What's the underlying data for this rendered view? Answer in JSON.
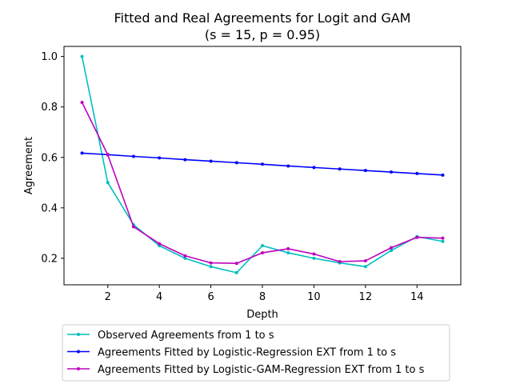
{
  "chart_data": {
    "type": "line",
    "title": "Fitted and Real Agreements for Logit and GAM",
    "subtitle": "(s = 15, p = 0.95)",
    "xlabel": "Depth",
    "ylabel": "Agreement",
    "xlim": [
      0.3,
      15.7
    ],
    "ylim": [
      0.095,
      1.04
    ],
    "xticks": [
      2,
      4,
      6,
      8,
      10,
      12,
      14
    ],
    "yticks": [
      0.2,
      0.4,
      0.6,
      0.8,
      1.0
    ],
    "xtick_labels": [
      "2",
      "4",
      "6",
      "8",
      "10",
      "12",
      "14"
    ],
    "ytick_labels": [
      "0.2",
      "0.4",
      "0.6",
      "0.8",
      "1.0"
    ],
    "grid": false,
    "legend_position": "below",
    "x": [
      1,
      2,
      3,
      4,
      5,
      6,
      7,
      8,
      9,
      10,
      11,
      12,
      13,
      14,
      15
    ],
    "series": [
      {
        "name": "Observed Agreements from 1 to s",
        "color": "#00bfbf",
        "values": [
          1.0,
          0.5,
          0.333,
          0.25,
          0.2,
          0.167,
          0.143,
          0.25,
          0.222,
          0.2,
          0.182,
          0.167,
          0.231,
          0.286,
          0.267
        ]
      },
      {
        "name": "Agreements Fitted by Logistic-Regression EXT from 1 to s",
        "color": "#0000ff",
        "values": [
          0.617,
          0.611,
          0.604,
          0.598,
          0.591,
          0.585,
          0.579,
          0.573,
          0.566,
          0.56,
          0.554,
          0.548,
          0.542,
          0.536,
          0.53
        ]
      },
      {
        "name": "Agreements Fitted by Logistic-GAM-Regression EXT from 1 to s",
        "color": "#bf00bf",
        "values": [
          0.818,
          0.61,
          0.325,
          0.258,
          0.21,
          0.182,
          0.18,
          0.222,
          0.238,
          0.217,
          0.187,
          0.19,
          0.242,
          0.283,
          0.28
        ]
      }
    ]
  }
}
